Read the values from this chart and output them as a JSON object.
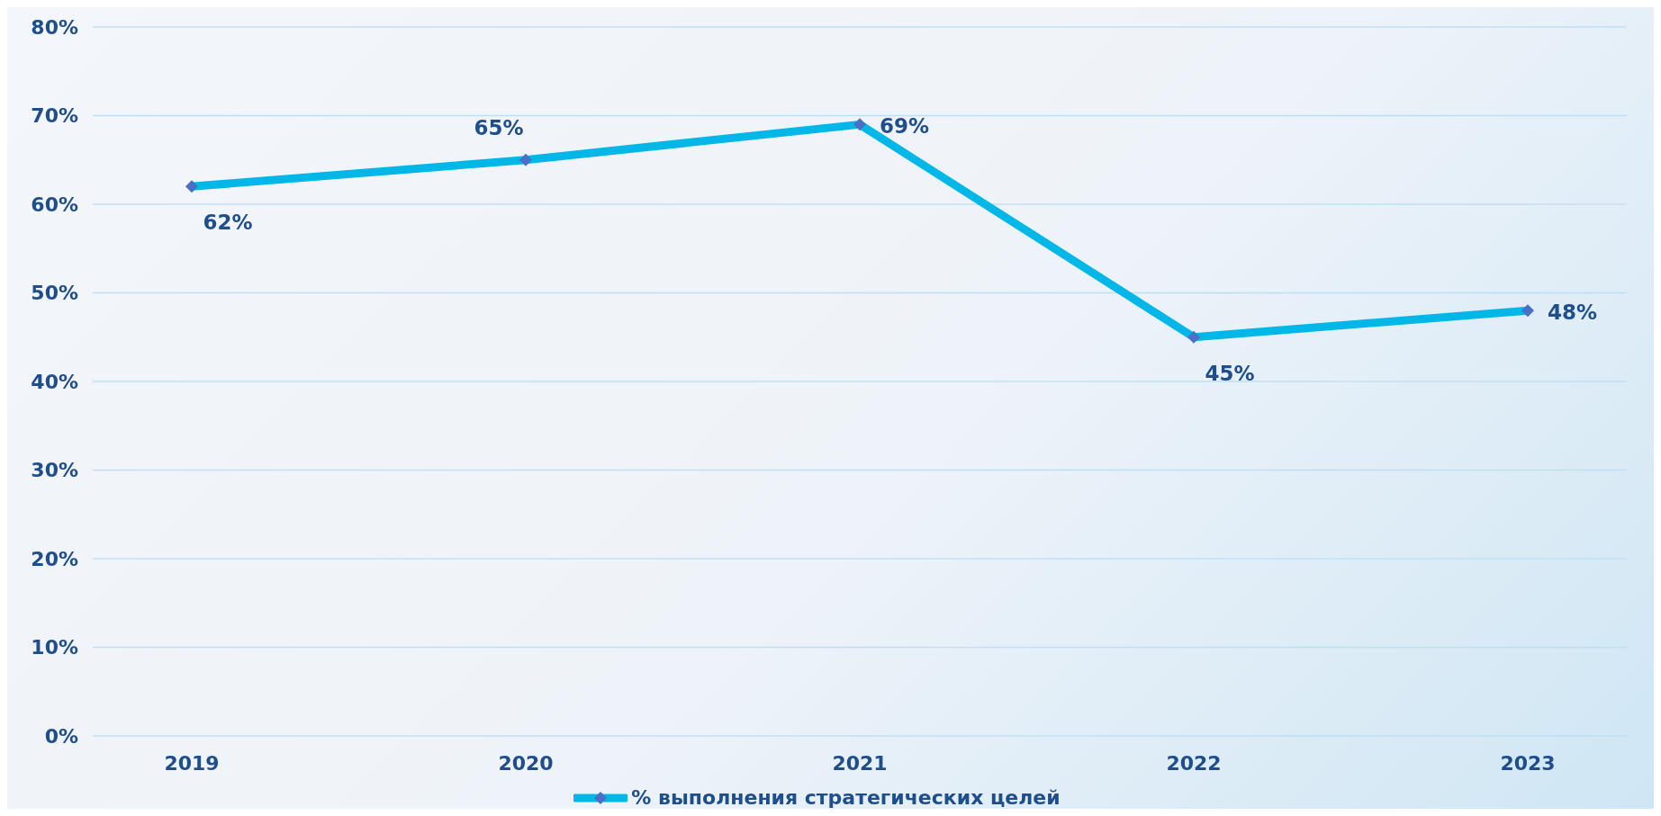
{
  "chart_data": {
    "type": "line",
    "categories": [
      "2019",
      "2020",
      "2021",
      "2022",
      "2023"
    ],
    "series": [
      {
        "name": "% выполнения стратегических целей",
        "color": "#00b7e8",
        "values": [
          62,
          65,
          69,
          45,
          48
        ],
        "value_labels": [
          "62%",
          "65%",
          "69%",
          "45%",
          "48%"
        ]
      }
    ],
    "ylim": [
      0,
      80
    ],
    "yticks": [
      {
        "value": 0,
        "label": "0%"
      },
      {
        "value": 10,
        "label": "10%"
      },
      {
        "value": 20,
        "label": "20%"
      },
      {
        "value": 30,
        "label": "30%"
      },
      {
        "value": 40,
        "label": "40%"
      },
      {
        "value": 50,
        "label": "50%"
      },
      {
        "value": 60,
        "label": "60%"
      },
      {
        "value": 70,
        "label": "70%"
      },
      {
        "value": 80,
        "label": "80%"
      }
    ],
    "grid": "y",
    "legend": "bottom",
    "marker": "diamond",
    "line_style": "solid"
  }
}
